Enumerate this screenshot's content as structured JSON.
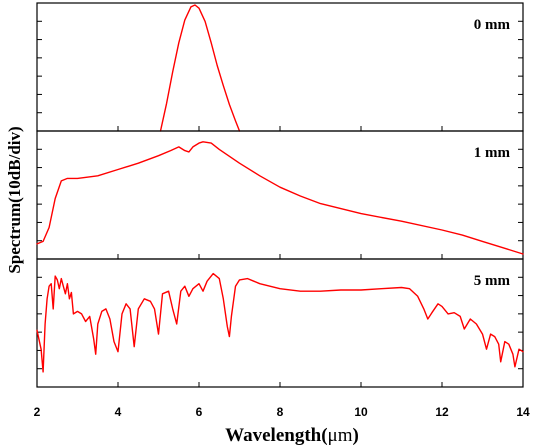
{
  "chart_data": {
    "type": "line",
    "xlabel_prefix": "Wavelength(",
    "xlabel_unit": "μm",
    "xlabel_suffix": ")",
    "ylabel": "Spectrum(10dB/div)",
    "xlim": [
      2,
      14
    ],
    "xticks": [
      2,
      4,
      6,
      8,
      10,
      12,
      14
    ],
    "line_color": "#ff0000",
    "panels": [
      {
        "label": "0 mm",
        "ylim": [
          0,
          1
        ],
        "series": [
          {
            "x": [
              5.05,
              5.2,
              5.35,
              5.5,
              5.65,
              5.8,
              5.9,
              6.0,
              6.15,
              6.3,
              6.45,
              6.6,
              6.75,
              6.9,
              7.0
            ],
            "y": [
              0.0,
              0.22,
              0.47,
              0.7,
              0.88,
              0.985,
              1.0,
              0.975,
              0.87,
              0.7,
              0.52,
              0.36,
              0.21,
              0.08,
              0.0
            ]
          }
        ]
      },
      {
        "label": "1 mm",
        "ylim": [
          0,
          1
        ],
        "series": [
          {
            "x": [
              2.0,
              2.15,
              2.3,
              2.45,
              2.6,
              2.75,
              3.0,
              3.5,
              4.0,
              4.5,
              5.0,
              5.3,
              5.5,
              5.65,
              5.75,
              5.85,
              6.0,
              6.1,
              6.3,
              6.5,
              7.0,
              7.5,
              8.0,
              8.5,
              9.0,
              10.0,
              11.0,
              12.0,
              12.5,
              13.0,
              13.5,
              14.0
            ],
            "y": [
              0.12,
              0.14,
              0.25,
              0.48,
              0.62,
              0.64,
              0.64,
              0.66,
              0.71,
              0.76,
              0.82,
              0.86,
              0.89,
              0.86,
              0.85,
              0.89,
              0.92,
              0.93,
              0.92,
              0.87,
              0.76,
              0.66,
              0.57,
              0.5,
              0.44,
              0.36,
              0.3,
              0.23,
              0.19,
              0.14,
              0.09,
              0.04
            ]
          }
        ]
      },
      {
        "label": "5 mm",
        "ylim": [
          0,
          1
        ],
        "series": [
          {
            "x": [
              2.0,
              2.1,
              2.15,
              2.2,
              2.25,
              2.3,
              2.35,
              2.4,
              2.45,
              2.5,
              2.55,
              2.6,
              2.65,
              2.7,
              2.75,
              2.8,
              2.85,
              2.9,
              3.0,
              3.1,
              3.2,
              3.3,
              3.4,
              3.45,
              3.5,
              3.6,
              3.7,
              3.8,
              3.9,
              4.0,
              4.1,
              4.2,
              4.3,
              4.4,
              4.5,
              4.65,
              4.8,
              4.9,
              5.0,
              5.1,
              5.25,
              5.35,
              5.45,
              5.55,
              5.65,
              5.75,
              5.85,
              6.0,
              6.1,
              6.2,
              6.35,
              6.5,
              6.6,
              6.7,
              6.75,
              6.8,
              6.9,
              7.0,
              7.2,
              7.5,
              8.0,
              8.5,
              9.0,
              9.5,
              10.0,
              10.5,
              11.0,
              11.2,
              11.4,
              11.55,
              11.65,
              11.75,
              11.9,
              12.0,
              12.15,
              12.3,
              12.45,
              12.55,
              12.7,
              12.85,
              13.0,
              13.1,
              13.2,
              13.3,
              13.4,
              13.45,
              13.55,
              13.65,
              13.75,
              13.8,
              13.9,
              14.0
            ],
            "y": [
              0.45,
              0.3,
              0.12,
              0.5,
              0.7,
              0.8,
              0.82,
              0.62,
              0.88,
              0.85,
              0.78,
              0.86,
              0.8,
              0.74,
              0.82,
              0.7,
              0.75,
              0.58,
              0.6,
              0.58,
              0.52,
              0.56,
              0.38,
              0.26,
              0.5,
              0.6,
              0.62,
              0.54,
              0.36,
              0.28,
              0.58,
              0.66,
              0.62,
              0.32,
              0.62,
              0.7,
              0.68,
              0.62,
              0.42,
              0.74,
              0.76,
              0.62,
              0.5,
              0.76,
              0.8,
              0.72,
              0.78,
              0.82,
              0.76,
              0.84,
              0.9,
              0.86,
              0.7,
              0.48,
              0.4,
              0.56,
              0.8,
              0.85,
              0.86,
              0.82,
              0.78,
              0.76,
              0.76,
              0.77,
              0.77,
              0.78,
              0.79,
              0.78,
              0.72,
              0.62,
              0.54,
              0.59,
              0.66,
              0.64,
              0.58,
              0.59,
              0.56,
              0.46,
              0.54,
              0.5,
              0.42,
              0.3,
              0.42,
              0.4,
              0.34,
              0.2,
              0.36,
              0.34,
              0.26,
              0.16,
              0.3,
              0.28
            ]
          }
        ]
      }
    ]
  }
}
